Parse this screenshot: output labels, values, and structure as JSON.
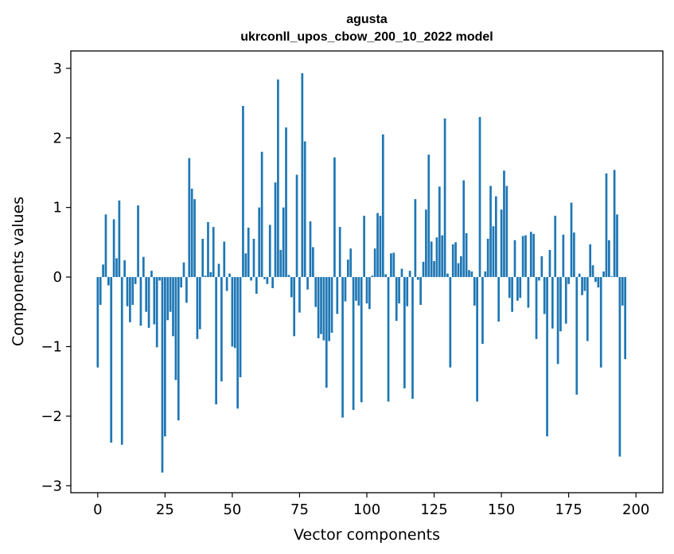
{
  "chart_data": {
    "type": "bar",
    "title_line1": "agusta",
    "title_line2": "ukrconll_upos_cbow_200_10_2022 model",
    "xlabel": "Vector components",
    "ylabel": "Components values",
    "xlim": [
      -10,
      210
    ],
    "ylim": [
      -3.1,
      3.25
    ],
    "xticks": [
      0,
      25,
      50,
      75,
      100,
      125,
      150,
      175,
      200
    ],
    "xtick_labels": [
      "0",
      "25",
      "50",
      "75",
      "100",
      "125",
      "150",
      "175",
      "200"
    ],
    "yticks": [
      -3,
      -2,
      -1,
      0,
      1,
      2,
      3
    ],
    "ytick_labels": [
      "−3",
      "−2",
      "−1",
      "0",
      "1",
      "2",
      "3"
    ],
    "grid": false,
    "legend": "none",
    "bar_color": "#1f77b4",
    "values": [
      -1.3,
      -0.4,
      0.18,
      0.9,
      -0.12,
      -2.38,
      0.83,
      0.27,
      1.1,
      -2.41,
      0.24,
      -0.42,
      -0.65,
      -0.4,
      -0.1,
      1.03,
      -0.7,
      0.29,
      -0.5,
      -0.73,
      0.09,
      -0.68,
      -1.01,
      -0.05,
      -2.81,
      -2.29,
      -0.62,
      -0.5,
      -0.85,
      -1.48,
      -2.06,
      -0.15,
      0.21,
      -0.37,
      1.71,
      1.27,
      1.12,
      -0.89,
      -0.75,
      0.55,
      0.02,
      0.79,
      0.07,
      0.72,
      -1.83,
      0.19,
      -1.5,
      0.51,
      -0.2,
      0.05,
      -1.0,
      -1.02,
      -1.89,
      -1.44,
      2.46,
      0.34,
      0.71,
      -0.05,
      0.55,
      -0.24,
      1.0,
      1.8,
      -0.03,
      -0.1,
      0.75,
      -0.16,
      1.36,
      2.84,
      0.39,
      1.0,
      2.15,
      0.03,
      -0.29,
      -0.85,
      1.47,
      -0.51,
      2.93,
      1.95,
      -0.18,
      0.8,
      0.43,
      -0.43,
      -0.88,
      -0.82,
      -0.91,
      -1.59,
      -0.92,
      -0.8,
      1.72,
      -0.53,
      0.72,
      -2.02,
      -0.35,
      0.25,
      0.41,
      -1.91,
      -0.34,
      -0.41,
      -1.8,
      0.88,
      -0.38,
      -0.46,
      0.02,
      0.41,
      0.92,
      0.88,
      2.05,
      0.04,
      -1.79,
      0.34,
      0.35,
      -0.63,
      -0.38,
      0.12,
      -1.6,
      -0.42,
      0.09,
      -1.75,
      1.12,
      -0.04,
      -0.4,
      0.22,
      0.97,
      1.76,
      0.51,
      0.23,
      0.57,
      1.3,
      0.6,
      2.28,
      0.05,
      -1.3,
      0.47,
      0.5,
      0.2,
      0.3,
      1.39,
      0.63,
      0.1,
      0.08,
      -0.41,
      -1.79,
      2.3,
      -0.96,
      0.08,
      0.55,
      1.31,
      0.73,
      1.16,
      -0.64,
      0.97,
      1.53,
      1.31,
      -0.3,
      -0.5,
      0.53,
      -0.34,
      -0.3,
      0.59,
      0.6,
      -0.44,
      0.65,
      0.62,
      -0.89,
      -0.05,
      0.3,
      -0.53,
      -2.29,
      0.39,
      -0.74,
      0.88,
      -1.25,
      -0.78,
      0.61,
      -0.67,
      -0.1,
      1.07,
      0.64,
      -1.69,
      0.05,
      -0.26,
      -0.2,
      -0.92,
      0.47,
      0.17,
      -0.07,
      -0.15,
      -1.3,
      0.08,
      1.49,
      0.53,
      0.01,
      1.54,
      0.9,
      -2.58,
      -0.41,
      -1.18,
      0.0,
      0.0,
      0.0
    ]
  }
}
